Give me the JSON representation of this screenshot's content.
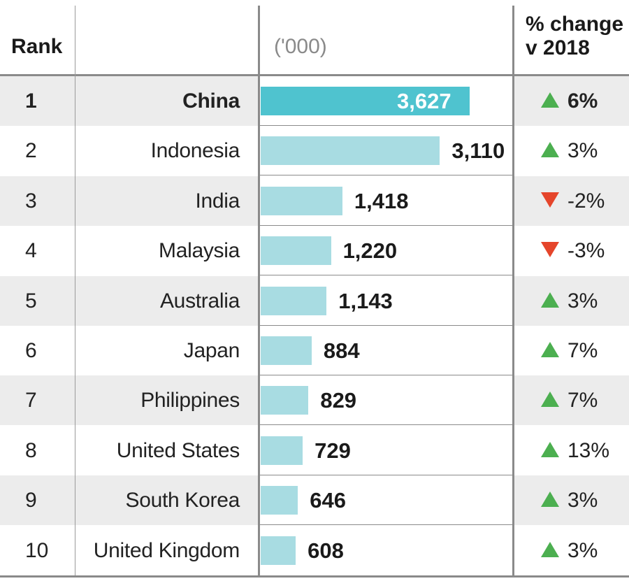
{
  "header": {
    "rank_label": "Rank",
    "unit_label": "('000)",
    "change_label_line1": "% change",
    "change_label_line2": "v 2018"
  },
  "colors": {
    "bar": "#a8dce2",
    "bar_highlight": "#4fc3cf",
    "up": "#4caf50",
    "down": "#e5452b"
  },
  "chart_data": {
    "type": "bar",
    "categories": [
      "China",
      "Indonesia",
      "India",
      "Malaysia",
      "Australia",
      "Japan",
      "Philippines",
      "United States",
      "South Korea",
      "United Kingdom"
    ],
    "values": [
      3627,
      3110,
      1418,
      1220,
      1143,
      884,
      829,
      729,
      646,
      608
    ],
    "xlim": [
      0,
      4400
    ],
    "rows": [
      {
        "rank": "1",
        "country": "China",
        "value": 3627,
        "value_label": "3,627",
        "change": "6%",
        "direction": "up",
        "highlight": true
      },
      {
        "rank": "2",
        "country": "Indonesia",
        "value": 3110,
        "value_label": "3,110",
        "change": "3%",
        "direction": "up"
      },
      {
        "rank": "3",
        "country": "India",
        "value": 1418,
        "value_label": "1,418",
        "change": "-2%",
        "direction": "down"
      },
      {
        "rank": "4",
        "country": "Malaysia",
        "value": 1220,
        "value_label": "1,220",
        "change": "-3%",
        "direction": "down"
      },
      {
        "rank": "5",
        "country": "Australia",
        "value": 1143,
        "value_label": "1,143",
        "change": "3%",
        "direction": "up"
      },
      {
        "rank": "6",
        "country": "Japan",
        "value": 884,
        "value_label": "884",
        "change": "7%",
        "direction": "up"
      },
      {
        "rank": "7",
        "country": "Philippines",
        "value": 829,
        "value_label": "829",
        "change": "7%",
        "direction": "up"
      },
      {
        "rank": "8",
        "country": "United States",
        "value": 729,
        "value_label": "729",
        "change": "13%",
        "direction": "up"
      },
      {
        "rank": "9",
        "country": "South Korea",
        "value": 646,
        "value_label": "646",
        "change": "3%",
        "direction": "up"
      },
      {
        "rank": "10",
        "country": "United Kingdom",
        "value": 608,
        "value_label": "608",
        "change": "3%",
        "direction": "up"
      }
    ]
  }
}
